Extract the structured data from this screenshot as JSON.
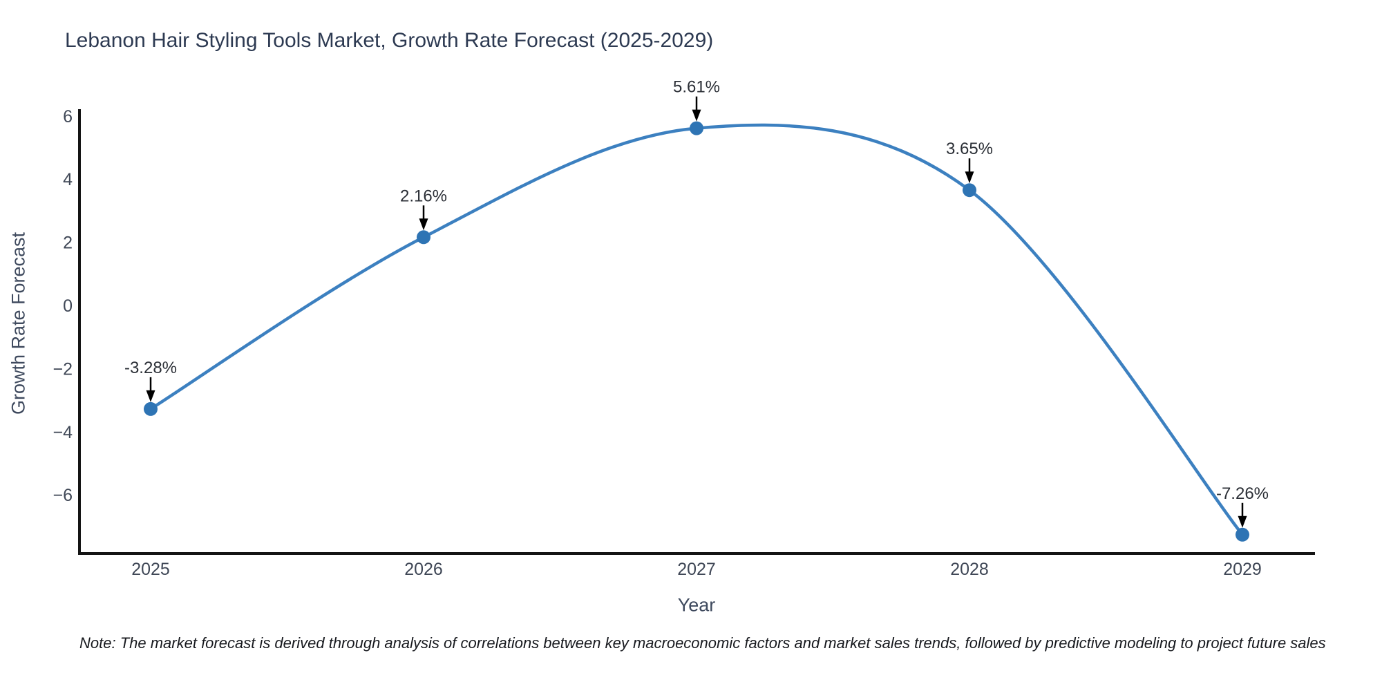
{
  "chart_data": {
    "type": "line",
    "title": "Lebanon Hair Styling Tools Market, Growth Rate Forecast (2025-2029)",
    "xlabel": "Year",
    "ylabel": "Growth Rate Forecast",
    "x": [
      2025,
      2026,
      2027,
      2028,
      2029
    ],
    "values": [
      -3.28,
      2.16,
      5.61,
      3.65,
      -7.26
    ],
    "point_labels": [
      "-3.28%",
      "2.16%",
      "5.61%",
      "3.65%",
      "-7.26%"
    ],
    "xtick_labels": [
      "2025",
      "2026",
      "2027",
      "2028",
      "2029"
    ],
    "ytick_values": [
      6,
      4,
      2,
      0,
      -2,
      -4,
      -6
    ],
    "ytick_labels": [
      "6",
      "4",
      "2",
      "0",
      "−2",
      "−4",
      "−6"
    ],
    "ylim": [
      -7.9,
      6.2
    ],
    "grid": false,
    "legend_position": "none",
    "curve_style": "smooth-spline",
    "line_color": "#3c80c0",
    "marker_color": "#2e74b4",
    "annotation_arrow_color": "#000000",
    "annotation_text_color": "#2b2f36",
    "axis_spine_color": "#141414",
    "tick_label_color": "#3f4756"
  },
  "footnote": {
    "text": "Note: The market forecast is derived through analysis of correlations between key macroeconomic factors and market sales trends, followed by predictive modeling to project future sales"
  }
}
